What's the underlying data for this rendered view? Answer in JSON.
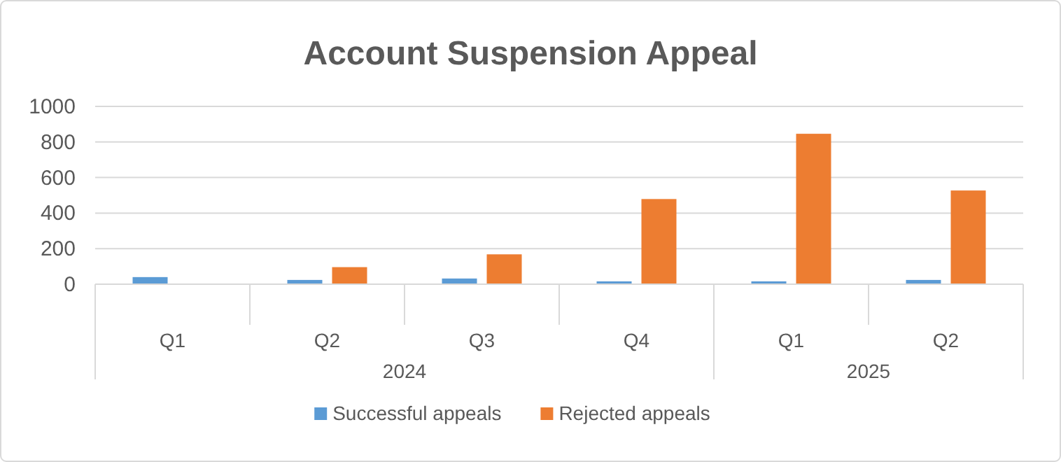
{
  "chart_data": {
    "type": "bar",
    "title": "Account Suspension Appeal",
    "categories": [
      "Q1",
      "Q2",
      "Q3",
      "Q4",
      "Q1",
      "Q2"
    ],
    "series": [
      {
        "name": "Successful appeals",
        "color": "#5b9bd5",
        "values": [
          40,
          24,
          32,
          16,
          16,
          24
        ]
      },
      {
        "name": "Rejected appeals",
        "color": "#ed7d31",
        "values": [
          null,
          96,
          168,
          479,
          846,
          527
        ]
      }
    ],
    "annotations": [
      "2024",
      "2025"
    ],
    "ylim": [
      0,
      1000
    ],
    "yticks": [
      0,
      200,
      400,
      600,
      800,
      1000
    ],
    "grid": "y",
    "legend": "bottom"
  }
}
